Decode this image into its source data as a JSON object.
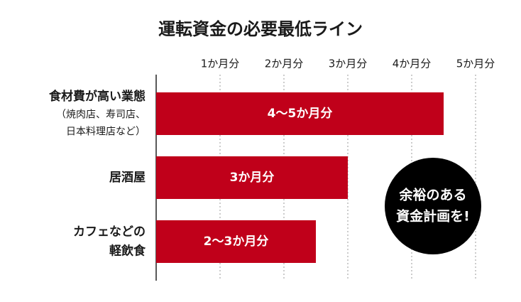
{
  "chart_data": {
    "type": "bar",
    "orientation": "horizontal",
    "title": "運転資金の必要最低ライン",
    "categories": [
      [
        "食材費が高い業態",
        "（焼肉店、寿司店、",
        "日本料理店など）"
      ],
      [
        "居酒屋"
      ],
      [
        "カフェなどの",
        "軽飲食"
      ]
    ],
    "values": [
      4.5,
      3,
      2.5
    ],
    "value_labels": [
      "4〜5か月分",
      "3か月分",
      "2〜3か月分"
    ],
    "color": "#c0001a",
    "xlim": [
      0,
      5
    ],
    "xticks": [
      {
        "value": 1,
        "label": "1か月分"
      },
      {
        "value": 2,
        "label": "2か月分"
      },
      {
        "value": 3,
        "label": "3か月分"
      },
      {
        "value": 4,
        "label": "4か月分"
      },
      {
        "value": 5,
        "label": "5か月分"
      }
    ],
    "grid": true,
    "annotation": [
      "余裕のある",
      "資金計画を!"
    ]
  }
}
